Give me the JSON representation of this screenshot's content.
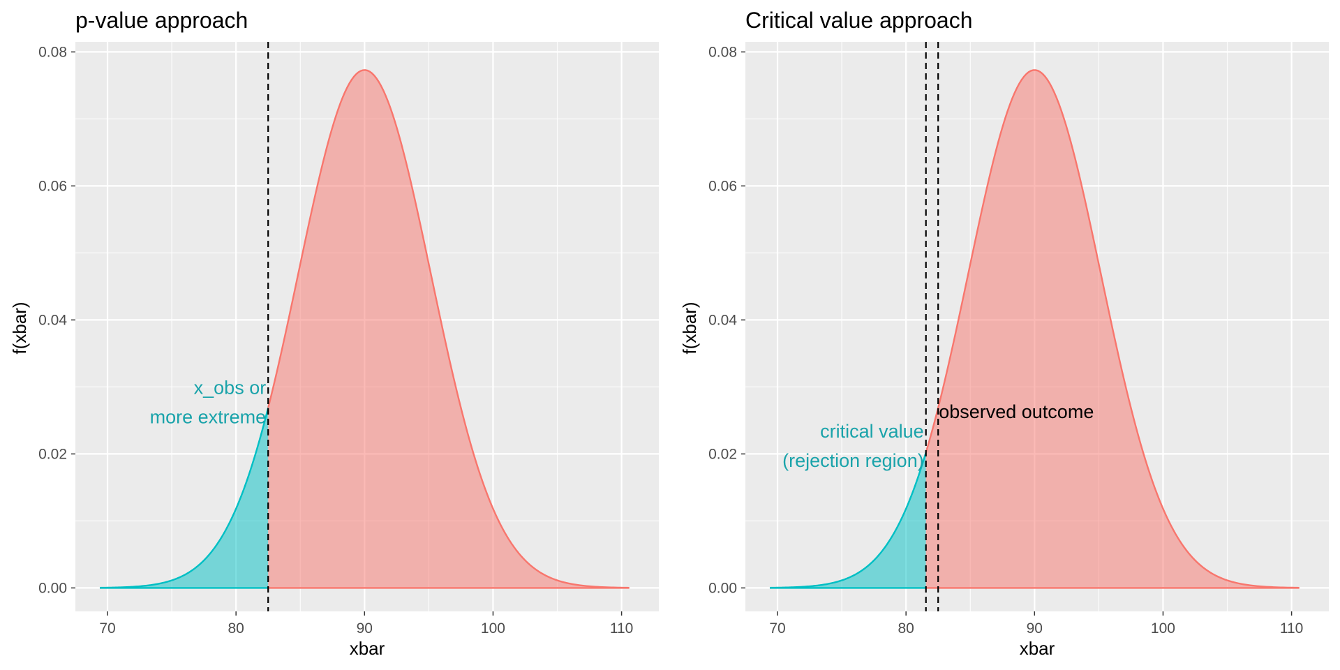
{
  "chart_data": [
    {
      "type": "area",
      "title": "p-value approach",
      "xlabel": "xbar",
      "ylabel": "f(xbar)",
      "xlim": [
        67.5,
        112.9
      ],
      "ylim": [
        -0.0035,
        0.0815
      ],
      "x_ticks": [
        70,
        80,
        90,
        100,
        110
      ],
      "x_tick_labels": [
        "70",
        "80",
        "90",
        "100",
        "110"
      ],
      "y_ticks": [
        0,
        0.02,
        0.04,
        0.06,
        0.08
      ],
      "y_tick_labels": [
        "0.00",
        "0.02",
        "0.04",
        "0.06",
        "0.08"
      ],
      "grid": true,
      "distribution": {
        "family": "normal",
        "mean": 90,
        "sd": 5.16,
        "x_from": 69.4,
        "x_to": 110.6,
        "peak_density": 0.0773
      },
      "series": [
        {
          "role": "tail",
          "x_from": 69.4,
          "x_to": 82.5,
          "color": "#00BFC4"
        },
        {
          "role": "body",
          "x_from": 82.5,
          "x_to": 110.6,
          "color": "#F8766D"
        }
      ],
      "vlines": [
        82.5
      ],
      "annotations": [
        {
          "lines": [
            "x_obs or",
            "more extreme"
          ],
          "x": 82.5,
          "y": 0.0255,
          "color": "#1AA3AA"
        }
      ]
    },
    {
      "type": "area",
      "title": "Critical value approach",
      "xlabel": "xbar",
      "ylabel": "f(xbar)",
      "xlim": [
        67.5,
        112.9
      ],
      "ylim": [
        -0.0035,
        0.0815
      ],
      "x_ticks": [
        70,
        80,
        90,
        100,
        110
      ],
      "x_tick_labels": [
        "70",
        "80",
        "90",
        "100",
        "110"
      ],
      "y_ticks": [
        0,
        0.02,
        0.04,
        0.06,
        0.08
      ],
      "y_tick_labels": [
        "0.00",
        "0.02",
        "0.04",
        "0.06",
        "0.08"
      ],
      "grid": true,
      "distribution": {
        "family": "normal",
        "mean": 90,
        "sd": 5.16,
        "x_from": 69.4,
        "x_to": 110.6,
        "peak_density": 0.0773
      },
      "series": [
        {
          "role": "tail",
          "x_from": 69.4,
          "x_to": 81.55,
          "color": "#00BFC4"
        },
        {
          "role": "body",
          "x_from": 81.55,
          "x_to": 110.6,
          "color": "#F8766D"
        }
      ],
      "vlines": [
        81.55,
        82.5
      ],
      "annotations": [
        {
          "lines": [
            "critical value",
            "(rejection region)"
          ],
          "x": 81.55,
          "y": 0.019,
          "color": "#1AA3AA"
        },
        {
          "lines": [
            "observed outcome"
          ],
          "x": 82.5,
          "y": 0.0263,
          "color": "#000000"
        }
      ]
    }
  ]
}
